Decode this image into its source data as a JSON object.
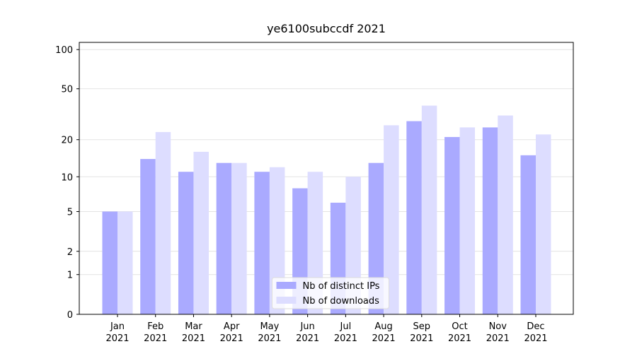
{
  "chart_data": {
    "type": "bar",
    "title": "ye6100subccdf 2021",
    "categories": [
      "Jan\n2021",
      "Feb\n2021",
      "Mar\n2021",
      "Apr\n2021",
      "May\n2021",
      "Jun\n2021",
      "Jul\n2021",
      "Aug\n2021",
      "Sep\n2021",
      "Oct\n2021",
      "Nov\n2021",
      "Dec\n2021"
    ],
    "series": [
      {
        "name": "Nb of distinct IPs",
        "color": "#aaaaff",
        "values": [
          5,
          14,
          11,
          13,
          11,
          8,
          6,
          13,
          28,
          21,
          25,
          15
        ]
      },
      {
        "name": "Nb of downloads",
        "color": "#ddddff",
        "values": [
          5,
          23,
          16,
          13,
          12,
          11,
          10,
          26,
          37,
          25,
          31,
          22
        ]
      }
    ],
    "yscale": "log1p",
    "ylim": [
      0,
      113.5
    ],
    "yticks": [
      0,
      1,
      2,
      5,
      10,
      20,
      50,
      100
    ],
    "grid": true,
    "legend": "lower center"
  }
}
